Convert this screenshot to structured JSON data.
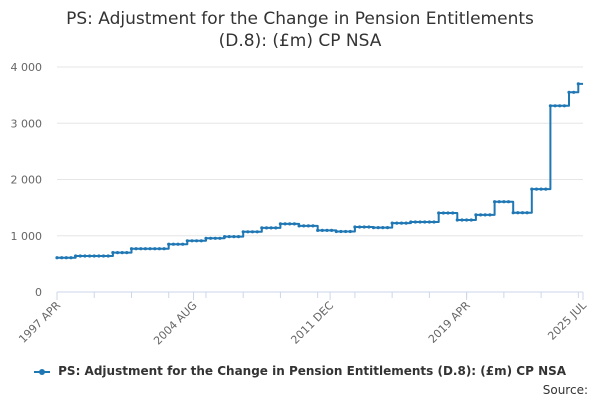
{
  "chart_data": {
    "type": "line",
    "title": "PS: Adjustment for the Change in Pension Entitlements (D.8): (£m) CP NSA",
    "title_lines": [
      "PS: Adjustment for the Change in Pension Entitlements",
      "(D.8): (£m) CP NSA"
    ],
    "xlabel": "",
    "ylabel": "",
    "ylim": [
      0,
      4000
    ],
    "yticks": [
      {
        "value": 0,
        "label": "0"
      },
      {
        "value": 1000,
        "label": "1 000"
      },
      {
        "value": 2000,
        "label": "2 000"
      },
      {
        "value": 3000,
        "label": "3 000"
      },
      {
        "value": 4000,
        "label": "4 000"
      }
    ],
    "xlim": [
      1997.25,
      2025.5
    ],
    "xticks": [
      {
        "value": 1997.25,
        "label": "1997 APR"
      },
      {
        "value": 2004.583,
        "label": "2004 AUG"
      },
      {
        "value": 2011.917,
        "label": "2011 DEC"
      },
      {
        "value": 2019.25,
        "label": "2019 APR"
      },
      {
        "value": 2025.5,
        "label": "2025 JUL"
      }
    ],
    "grid": "horizontal",
    "legend_position": "bottom",
    "color": "#1f77b4",
    "series": [
      {
        "name": "PS: Adjustment for the Change in Pension Entitlements (D.8): (£m) CP NSA",
        "steps": [
          {
            "x": 1997.25,
            "y": 610
          },
          {
            "x": 1998.25,
            "y": 640
          },
          {
            "x": 2000.25,
            "y": 700
          },
          {
            "x": 2001.25,
            "y": 770
          },
          {
            "x": 2003.25,
            "y": 850
          },
          {
            "x": 2004.25,
            "y": 910
          },
          {
            "x": 2005.25,
            "y": 955
          },
          {
            "x": 2006.25,
            "y": 985
          },
          {
            "x": 2007.25,
            "y": 1070
          },
          {
            "x": 2008.25,
            "y": 1140
          },
          {
            "x": 2009.25,
            "y": 1210
          },
          {
            "x": 2010.25,
            "y": 1175
          },
          {
            "x": 2011.25,
            "y": 1095
          },
          {
            "x": 2012.25,
            "y": 1075
          },
          {
            "x": 2013.25,
            "y": 1155
          },
          {
            "x": 2014.25,
            "y": 1145
          },
          {
            "x": 2015.25,
            "y": 1225
          },
          {
            "x": 2016.25,
            "y": 1245
          },
          {
            "x": 2017.75,
            "y": 1405
          },
          {
            "x": 2018.75,
            "y": 1280
          },
          {
            "x": 2019.75,
            "y": 1370
          },
          {
            "x": 2020.75,
            "y": 1605
          },
          {
            "x": 2021.75,
            "y": 1410
          },
          {
            "x": 2022.75,
            "y": 1830
          },
          {
            "x": 2023.75,
            "y": 3310
          },
          {
            "x": 2024.75,
            "y": 3550
          },
          {
            "x": 2025.25,
            "y": 3700
          }
        ],
        "end_x": 2025.5
      }
    ]
  },
  "legend": {
    "label": "PS: Adjustment for the Change in Pension Entitlements (D.8): (£m) CP NSA"
  },
  "source_label": "Source:"
}
